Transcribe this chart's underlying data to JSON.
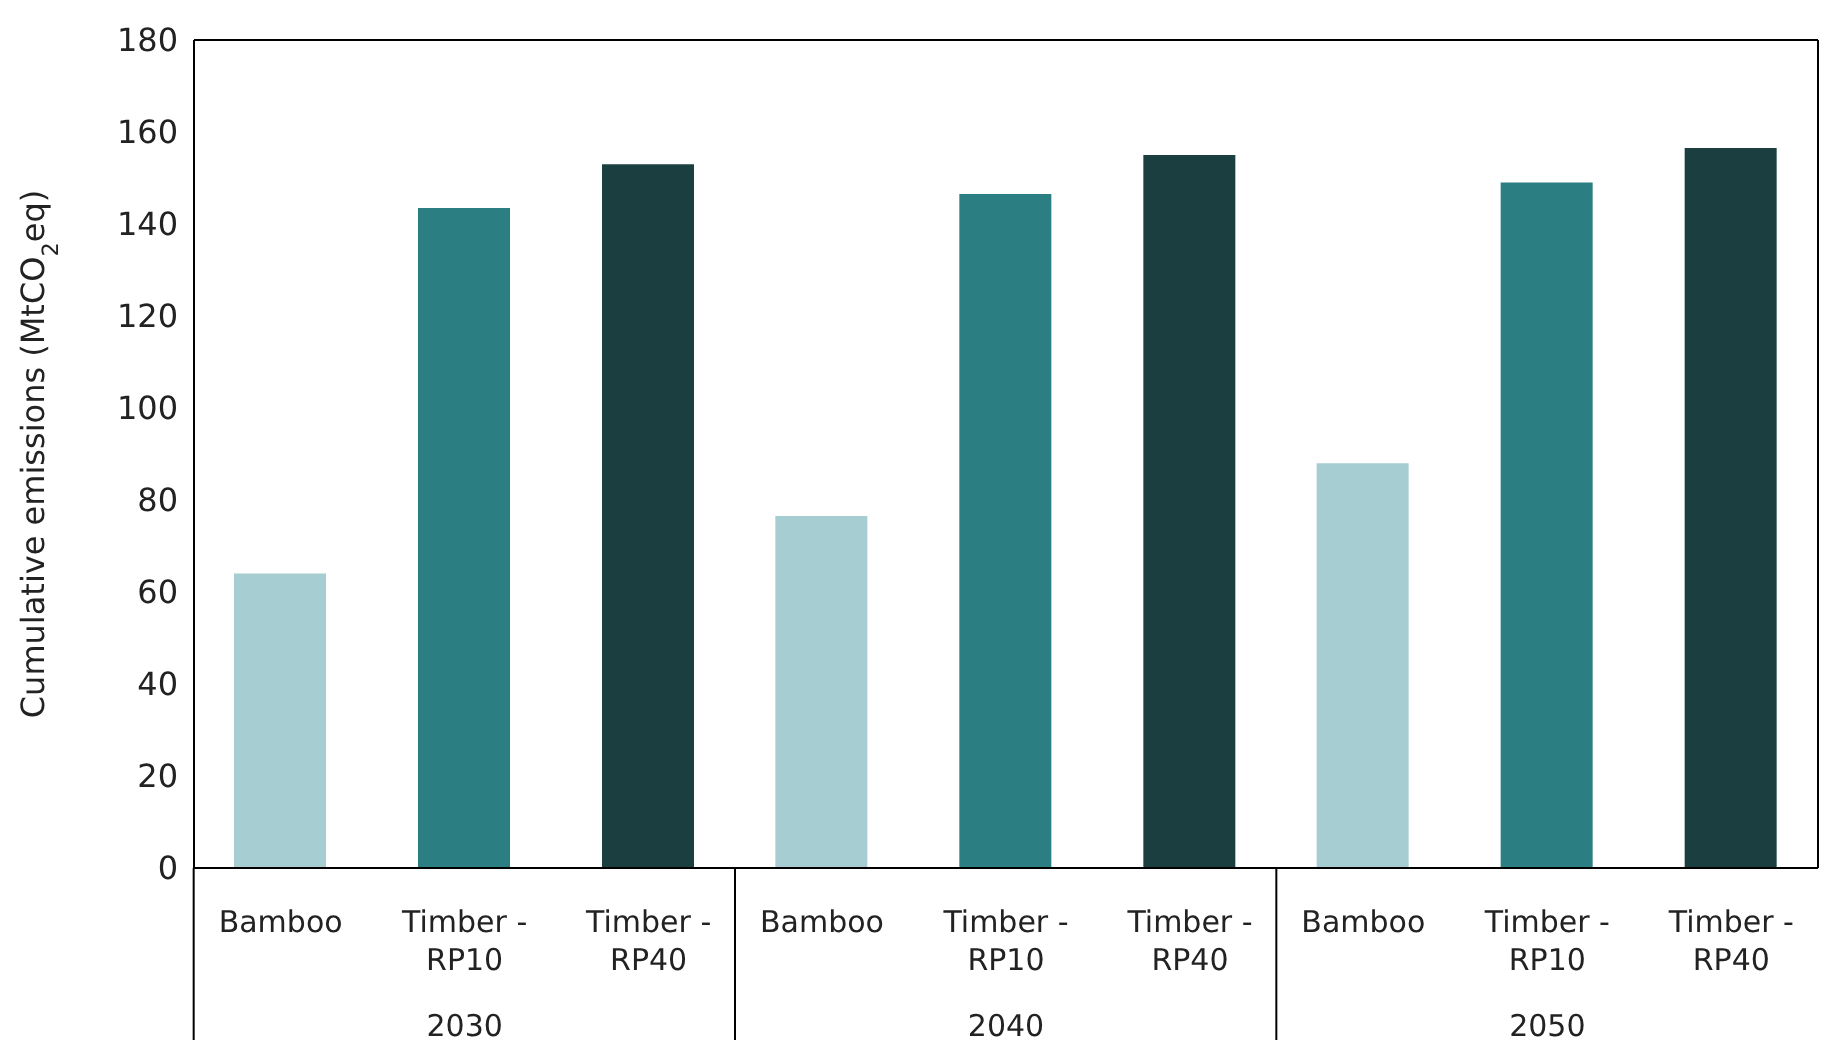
{
  "chart_data": {
    "type": "bar",
    "ylabel": "Cumulative emissions (MtCO$_{2}$eq)",
    "categories": [
      "2030",
      "2040",
      "2050"
    ],
    "series": [
      {
        "name": "Bamboo",
        "color": "#a6cdd1",
        "values": [
          64,
          76.5,
          88
        ]
      },
      {
        "name": "Timber - RP10",
        "color": "#2b7f82",
        "values": [
          143.5,
          146.5,
          149
        ]
      },
      {
        "name": "Timber - RP40",
        "color": "#1b3f41",
        "values": [
          153,
          155,
          156.5
        ]
      }
    ],
    "ylim": [
      0,
      180
    ],
    "yticks": [
      0,
      20,
      40,
      60,
      80,
      100,
      120,
      140,
      160,
      180
    ]
  }
}
